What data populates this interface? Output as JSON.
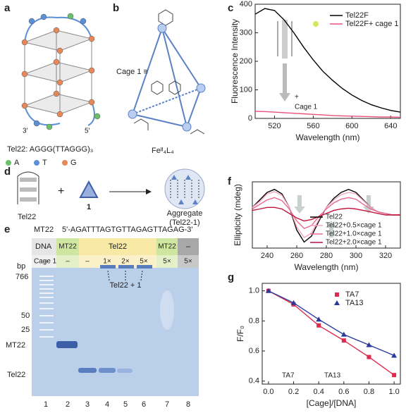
{
  "panel_a": {
    "label": "a",
    "sequence": "Tel22: AGGG(TTAGGG)₃",
    "legend": [
      "A",
      "T",
      "G"
    ],
    "ends": [
      "3'",
      "5'"
    ]
  },
  "panel_b": {
    "label": "b",
    "cage": "Cage 1 ≡",
    "formula": "Feᴵᴵ₄L₄"
  },
  "panel_d": {
    "label": "d",
    "tel22": "Tel22",
    "plus": "+",
    "one": "1",
    "aggregate": "Aggregate",
    "aggregate_sub": "(Tel22-1)"
  },
  "panel_e": {
    "label": "e",
    "sequence_name": "MT22",
    "sequence": "5'-AGATTTAGTGTTAGAGTTAGAG-3'",
    "row_labels": [
      "DNA",
      "Cage 1"
    ],
    "dna": [
      "MT22",
      "Tel22",
      "MT22",
      "–"
    ],
    "cage": [
      "–",
      "–",
      "–",
      "1×",
      "2×",
      "5×",
      "5×",
      "5×"
    ],
    "bp": "bp",
    "markers": [
      "766",
      "50",
      "25",
      "MT22",
      "Tel22"
    ],
    "annotation": "Tel22 + 1",
    "lanes": [
      "1",
      "2",
      "3",
      "4",
      "5",
      "6",
      "7",
      "8"
    ]
  },
  "panel_labels": {
    "c": "c",
    "f": "f",
    "g": "g"
  },
  "chart_data": [
    {
      "type": "line",
      "xlabel": "Wavelength (nm)",
      "ylabel": "Fluorescence Intensity",
      "x": [
        500,
        510,
        520,
        530,
        540,
        550,
        560,
        570,
        580,
        590,
        600,
        610,
        620,
        630,
        640,
        650
      ],
      "series": [
        {
          "name": "Tel22F",
          "color": "#000000",
          "values": [
            365,
            385,
            378,
            345,
            300,
            250,
            205,
            165,
            133,
            105,
            82,
            63,
            48,
            37,
            28,
            22
          ]
        },
        {
          "name": "Tel22F+ cage 1",
          "color": "#e8507a",
          "values": [
            25,
            24,
            22,
            20,
            18,
            16,
            14,
            12,
            10,
            9,
            8,
            7,
            6,
            5,
            5,
            4
          ]
        }
      ],
      "xlim": [
        500,
        650
      ],
      "ylim": [
        0,
        400
      ],
      "xticks": [
        520,
        560,
        600,
        640
      ],
      "yticks": [
        0,
        100,
        200,
        300,
        400
      ],
      "annotation": [
        "+",
        "Cage 1"
      ],
      "legend": "upper right"
    },
    {
      "type": "line",
      "xlabel": "Wavelength (nm)",
      "ylabel": "Ellipticity (mdeg)",
      "x": [
        230,
        235,
        240,
        245,
        250,
        255,
        260,
        265,
        270,
        275,
        280,
        285,
        290,
        295,
        300,
        305,
        310,
        315,
        320,
        325,
        330
      ],
      "series": [
        {
          "name": "Tel22",
          "color": "#000000",
          "values": [
            0.3,
            0.8,
            1.3,
            1.5,
            1.2,
            0.3,
            -1.2,
            -2.0,
            -1.6,
            -0.6,
            0.3,
            0.9,
            1.3,
            1.5,
            1.3,
            0.8,
            0.3,
            0.0,
            -0.1,
            -0.2,
            -0.2
          ]
        },
        {
          "name": "Tel22+0.5×cage 1",
          "color": "#f4a6bd",
          "values": [
            0.3,
            0.7,
            1.2,
            1.35,
            1.1,
            0.3,
            -1.0,
            -1.7,
            -1.4,
            -0.5,
            0.3,
            0.8,
            1.15,
            1.3,
            1.2,
            0.75,
            0.3,
            0.0,
            -0.1,
            -0.2,
            -0.2
          ]
        },
        {
          "name": "Tel22+1.0×cage 1",
          "color": "#e86b8f",
          "values": [
            0.2,
            0.5,
            0.8,
            0.95,
            0.75,
            0.2,
            -0.6,
            -1.1,
            -0.9,
            -0.3,
            0.2,
            0.6,
            0.85,
            0.95,
            0.85,
            0.5,
            0.2,
            0.0,
            -0.1,
            -0.2,
            -0.2
          ]
        },
        {
          "name": "Tel22+2.0×cage 1",
          "color": "#c0143c",
          "values": [
            0.1,
            0.2,
            0.3,
            0.3,
            0.2,
            -0.1,
            -0.4,
            -0.6,
            -0.5,
            -0.3,
            -0.1,
            0.1,
            0.2,
            0.25,
            0.2,
            0.1,
            0.0,
            -0.1,
            -0.2,
            -0.2,
            -0.2
          ]
        }
      ],
      "xlim": [
        230,
        330
      ],
      "ylim": [
        -2.4,
        2.0
      ],
      "xticks": [
        240,
        260,
        280,
        300,
        320
      ],
      "legend": "lower right"
    },
    {
      "type": "scatter",
      "xlabel": "[Cage]/[DNA]",
      "ylabel": "F/F₀",
      "x": [
        0,
        0.2,
        0.4,
        0.6,
        0.8,
        1.0
      ],
      "series": [
        {
          "name": "TA7",
          "color": "#e0294f",
          "marker": "square",
          "values": [
            1.0,
            0.91,
            0.77,
            0.67,
            0.56,
            0.44
          ]
        },
        {
          "name": "TA13",
          "color": "#2b3a9a",
          "marker": "triangle",
          "values": [
            1.0,
            0.92,
            0.81,
            0.71,
            0.64,
            0.57
          ]
        }
      ],
      "xlim": [
        -0.05,
        1.05
      ],
      "ylim": [
        0.38,
        1.05
      ],
      "xticks": [
        {
          "value": 0,
          "label": "0.0"
        },
        0.2,
        0.4,
        0.6,
        0.8,
        {
          "value": 1,
          "label": "1.0"
        }
      ],
      "yticks": [
        0.4,
        0.6,
        0.8,
        {
          "value": 1,
          "label": "1.0"
        }
      ],
      "annotation": [
        "TA7",
        "TA13"
      ],
      "legend": "upper right"
    }
  ]
}
